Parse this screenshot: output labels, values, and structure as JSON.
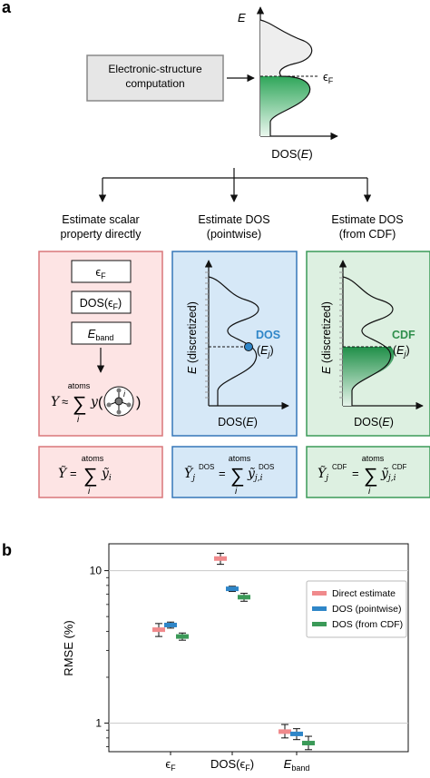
{
  "panel_a": {
    "label": "a",
    "input_box": "Electronic-structure\ncomputation",
    "top_axis_y": "E",
    "top_axis_x": "DOS(E)",
    "top_fermi": "ϵF",
    "columns": [
      {
        "title": "Estimate scalar\nproperty directly"
      },
      {
        "title": "Estimate DOS\n(pointwise)"
      },
      {
        "title": "Estimate DOS\n(from CDF)"
      }
    ],
    "scalar_items": [
      "ϵF",
      "DOS(ϵF)",
      "Eband"
    ],
    "scalar_sum": "atoms",
    "dos_axis_y": "E (discretized)",
    "dos_axis_x": "DOS(E)",
    "dos_point_label": "DOS",
    "dos_point_sub": "(Ej)",
    "cdf_axis_y": "E (discretized)",
    "cdf_axis_x": "DOS(E)",
    "cdf_point_label": "CDF",
    "cdf_point_sub": "(Ej)",
    "sum_label": "atoms",
    "colors": {
      "red_fill": "#fde4e4",
      "red_border": "#d9777a",
      "blue_fill": "#d6e8f7",
      "blue_border": "#3577b8",
      "green_fill": "#ddf0e1",
      "green_border": "#3b9a58",
      "dos_point": "#2f86c8",
      "cdf_text": "#2f8f4c"
    }
  },
  "panel_b": {
    "label": "b",
    "chart_data": {
      "type": "scatter",
      "ylabel": "RMSE (%)",
      "yscale": "log",
      "ylim": [
        0.65,
        15
      ],
      "yticks": [
        1,
        10
      ],
      "grid": "horizontal at 1 and 10",
      "legend_position": "top-right",
      "categories": [
        "ϵF",
        "DOS(ϵF)",
        "Eband"
      ],
      "series": [
        {
          "name": "Direct estimate",
          "color": "#f08a8c",
          "values": [
            4.1,
            12.0,
            0.88
          ],
          "err_low": [
            3.7,
            11.0,
            0.8
          ],
          "err_high": [
            4.5,
            13.0,
            0.98
          ]
        },
        {
          "name": "DOS (pointwise)",
          "color": "#2f86c8",
          "values": [
            4.4,
            7.6,
            0.85
          ],
          "err_low": [
            4.2,
            7.3,
            0.78
          ],
          "err_high": [
            4.6,
            7.9,
            0.92
          ]
        },
        {
          "name": "DOS (from CDF)",
          "color": "#3b9a58",
          "values": [
            3.7,
            6.7,
            0.74
          ],
          "err_low": [
            3.5,
            6.3,
            0.67
          ],
          "err_high": [
            3.9,
            7.1,
            0.82
          ]
        }
      ]
    }
  }
}
